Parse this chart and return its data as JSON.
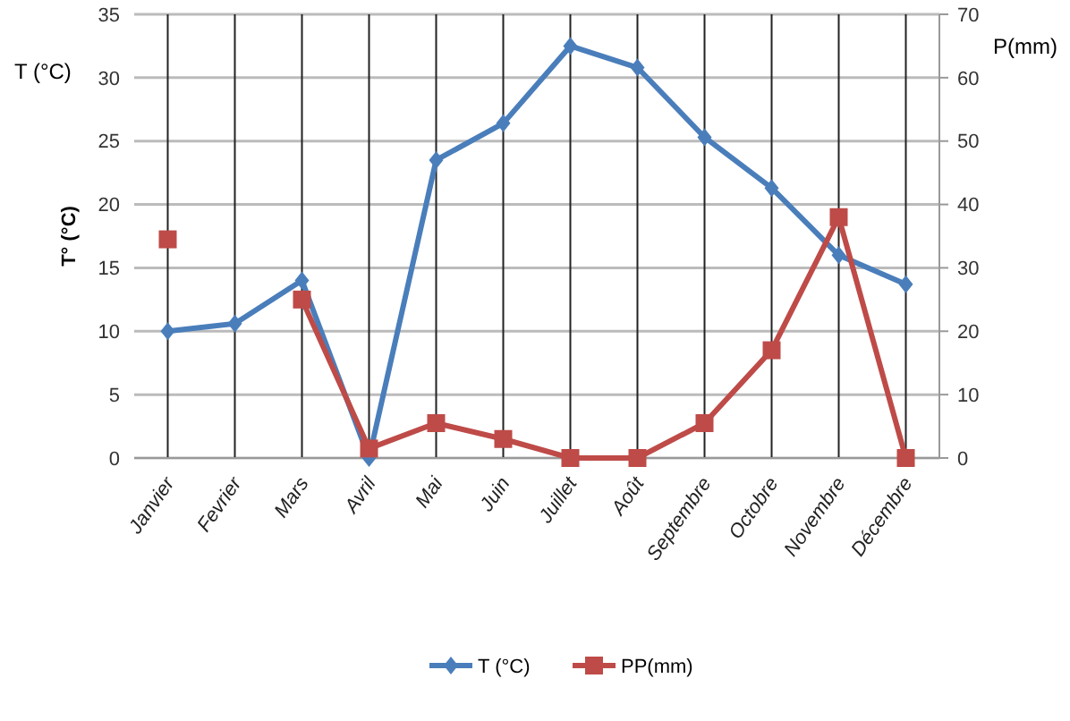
{
  "chart_data": {
    "type": "line",
    "categories": [
      "Janvier",
      "Fevrier",
      "Mars",
      "Avril",
      "Mai",
      "Juin",
      "Juillet",
      "Août",
      "Septembre",
      "Octobre",
      "Novembre",
      "Décembre"
    ],
    "series": [
      {
        "name": "T (°C)",
        "color": "#4a7ebb",
        "marker": "diamond",
        "values": [
          10,
          10.6,
          14,
          0,
          23.5,
          26.4,
          32.5,
          30.8,
          25.3,
          21.3,
          16,
          13.7
        ]
      },
      {
        "name": "PP(mm)",
        "color": "#be4b48",
        "marker": "square",
        "axis": "y2",
        "values": [
          34.5,
          null,
          25,
          1.5,
          5.5,
          3,
          0,
          0,
          5.5,
          17,
          38,
          0
        ]
      }
    ],
    "ylabel": "T° (°C)",
    "y2label": "P(mm)",
    "annotations": [
      "T (°C)"
    ],
    "ylim": [
      0,
      35
    ],
    "yticks": [
      0,
      5,
      10,
      15,
      20,
      25,
      30,
      35
    ],
    "y2lim": [
      0,
      70
    ],
    "y2ticks": [
      0,
      10,
      20,
      30,
      40,
      50,
      60,
      70
    ],
    "grid": true,
    "legend": "bottom",
    "line_style": "solid"
  }
}
